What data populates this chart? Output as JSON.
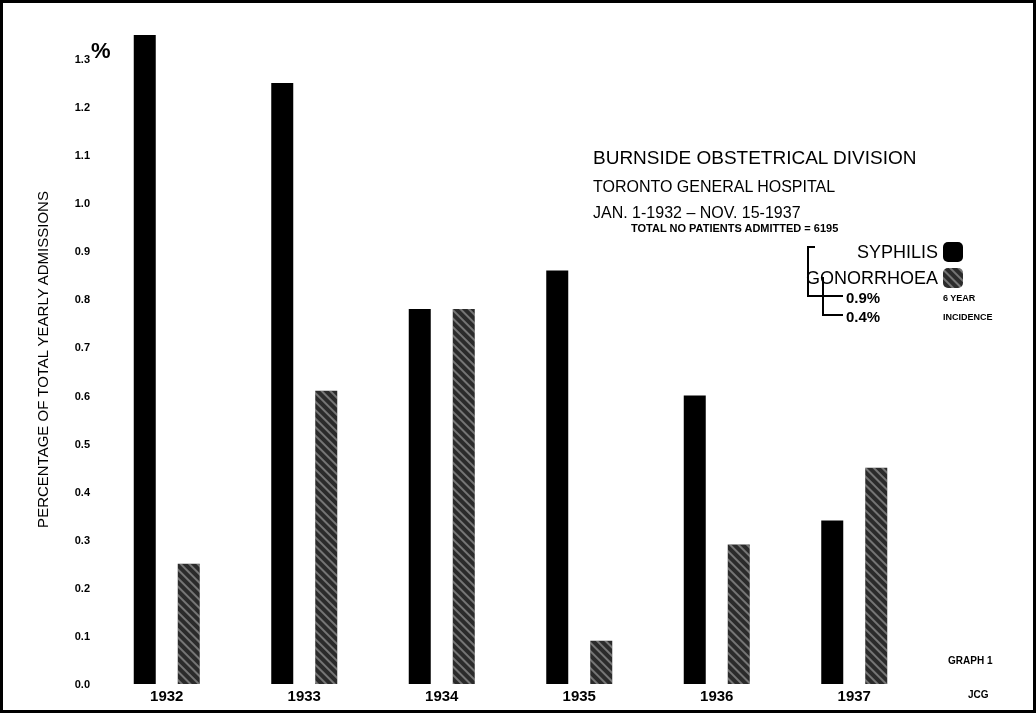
{
  "chart_data": {
    "type": "bar",
    "title": "BURNSIDE OBSTETRICAL DIVISION",
    "subtitle": "TORONTO GENERAL HOSPITAL\nJAN. 1-1932 – NOV. 15-1937",
    "ylabel": "PERCENTAGE OF TOTAL YEARLY ADMISSIONS",
    "categories": [
      "1932",
      "1933",
      "1934",
      "1935",
      "1936",
      "1937"
    ],
    "series": [
      {
        "name": "SYPHILIS",
        "color": "#000000",
        "values": [
          1.35,
          1.25,
          0.78,
          0.86,
          0.6,
          0.34
        ]
      },
      {
        "name": "GONORRHOEA",
        "color": "#2b2b2b",
        "values": [
          0.25,
          0.61,
          0.78,
          0.09,
          0.29,
          0.45
        ]
      }
    ],
    "ylim": [
      0,
      1.35
    ],
    "yticks": [
      {
        "value": 0,
        "label": "0.0"
      },
      0.1,
      0.2,
      0.3,
      0.4,
      0.5,
      0.6,
      0.7,
      0.8,
      0.9,
      {
        "value": 1,
        "label": "1.0"
      },
      1.1,
      1.2,
      1.3
    ],
    "grid": false,
    "legend": "top right",
    "annotations": [
      "%",
      "TOTAL NO PATIENTS ADMITTED = 6195",
      "0.9%",
      "0.4%",
      "6 YEAR",
      "INCIDENCE",
      "GRAPH 1",
      "JCG"
    ]
  }
}
